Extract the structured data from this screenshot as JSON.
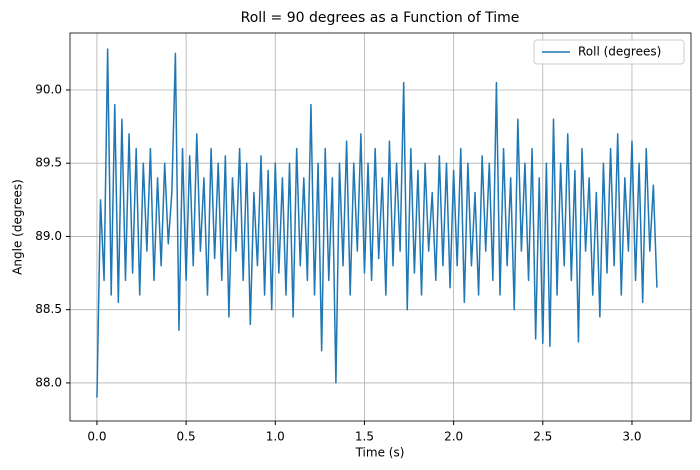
{
  "chart_data": {
    "type": "line",
    "title": "Roll = 90 degrees as a Function of Time",
    "xlabel": "Time (s)",
    "ylabel": "Angle (degrees)",
    "x": [
      0,
      0.02,
      0.04,
      0.06,
      0.08,
      0.1,
      0.12,
      0.14,
      0.16,
      0.18,
      0.2,
      0.22,
      0.24,
      0.26,
      0.28,
      0.3,
      0.32,
      0.34,
      0.36,
      0.38,
      0.4,
      0.42,
      0.44,
      0.46,
      0.48,
      0.5,
      0.52,
      0.54,
      0.56,
      0.58,
      0.6,
      0.62,
      0.64,
      0.66,
      0.68,
      0.7,
      0.72,
      0.74,
      0.76,
      0.78,
      0.8,
      0.82,
      0.84,
      0.86,
      0.88,
      0.9,
      0.92,
      0.94,
      0.96,
      0.98,
      1.0,
      1.02,
      1.04,
      1.06,
      1.08,
      1.1,
      1.12,
      1.14,
      1.16,
      1.18,
      1.2,
      1.22,
      1.24,
      1.26,
      1.28,
      1.3,
      1.32,
      1.34,
      1.36,
      1.38,
      1.4,
      1.42,
      1.44,
      1.46,
      1.48,
      1.5,
      1.52,
      1.54,
      1.56,
      1.58,
      1.6,
      1.62,
      1.64,
      1.66,
      1.68,
      1.7,
      1.72,
      1.74,
      1.76,
      1.78,
      1.8,
      1.82,
      1.84,
      1.86,
      1.88,
      1.9,
      1.92,
      1.94,
      1.96,
      1.98,
      2.0,
      2.02,
      2.04,
      2.06,
      2.08,
      2.1,
      2.12,
      2.14,
      2.16,
      2.18,
      2.2,
      2.22,
      2.24,
      2.26,
      2.28,
      2.3,
      2.32,
      2.34,
      2.36,
      2.38,
      2.4,
      2.42,
      2.44,
      2.46,
      2.48,
      2.5,
      2.52,
      2.54,
      2.56,
      2.58,
      2.6,
      2.62,
      2.64,
      2.66,
      2.68,
      2.7,
      2.72,
      2.74,
      2.76,
      2.78,
      2.8,
      2.82,
      2.84,
      2.86,
      2.88,
      2.9,
      2.92,
      2.94,
      2.96,
      2.98,
      3.0,
      3.02,
      3.04,
      3.06,
      3.08,
      3.1,
      3.12,
      3.14
    ],
    "series": [
      {
        "name": "Roll (degrees)",
        "color": "#1f77b4",
        "values": [
          87.9,
          89.25,
          88.7,
          90.28,
          88.6,
          89.9,
          88.55,
          89.8,
          88.7,
          89.7,
          88.75,
          89.6,
          88.6,
          89.5,
          88.9,
          89.6,
          88.7,
          89.4,
          88.8,
          89.5,
          88.95,
          89.3,
          90.25,
          88.36,
          89.6,
          88.7,
          89.55,
          88.8,
          89.7,
          88.9,
          89.4,
          88.6,
          89.6,
          88.85,
          89.5,
          88.7,
          89.55,
          88.45,
          89.4,
          88.9,
          89.6,
          88.7,
          89.5,
          88.4,
          89.3,
          88.8,
          89.55,
          88.6,
          89.45,
          88.5,
          89.5,
          88.75,
          89.4,
          88.6,
          89.5,
          88.45,
          89.6,
          88.8,
          89.4,
          88.7,
          89.9,
          88.6,
          89.5,
          88.22,
          89.6,
          88.7,
          89.4,
          88.0,
          89.5,
          88.8,
          89.65,
          88.6,
          89.5,
          88.9,
          89.7,
          88.75,
          89.5,
          88.7,
          89.6,
          88.85,
          89.4,
          88.6,
          89.65,
          88.8,
          89.5,
          88.9,
          90.05,
          88.5,
          89.6,
          88.75,
          89.45,
          88.6,
          89.5,
          88.9,
          89.3,
          88.7,
          89.55,
          88.8,
          89.5,
          88.65,
          89.45,
          88.8,
          89.6,
          88.55,
          89.5,
          88.8,
          89.3,
          88.6,
          89.55,
          88.9,
          89.5,
          88.7,
          90.05,
          88.6,
          89.6,
          88.8,
          89.4,
          88.5,
          89.8,
          88.9,
          89.5,
          88.7,
          89.6,
          88.3,
          89.4,
          88.27,
          89.5,
          88.25,
          89.8,
          88.6,
          89.5,
          88.8,
          89.7,
          88.7,
          89.45,
          88.28,
          89.6,
          88.9,
          89.4,
          88.6,
          89.3,
          88.45,
          89.5,
          88.75,
          89.6,
          88.8,
          89.7,
          88.6,
          89.4,
          88.9,
          89.65,
          88.7,
          89.5,
          88.55,
          89.6,
          88.9,
          89.35,
          88.65
        ]
      }
    ],
    "xlim": [
      -0.151,
      3.331
    ],
    "ylim": [
      87.74,
      90.389
    ],
    "xticks": [
      {
        "value": 0,
        "label": "0.0"
      },
      0.5,
      {
        "value": 1,
        "label": "1.0"
      },
      1.5,
      {
        "value": 2,
        "label": "2.0"
      },
      2.5,
      {
        "value": 3,
        "label": "3.0"
      }
    ],
    "yticks": [
      {
        "value": 88,
        "label": "88.0"
      },
      88.5,
      {
        "value": 89,
        "label": "89.0"
      },
      89.5,
      {
        "value": 90,
        "label": "90.0"
      }
    ],
    "grid": true,
    "legend": "upper right"
  }
}
